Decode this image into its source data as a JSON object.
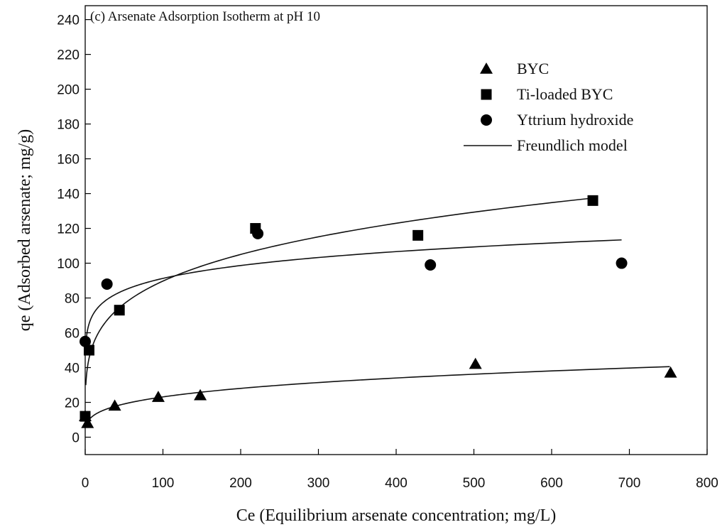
{
  "chart_data": {
    "type": "scatter",
    "title": "(c) Arsenate Adsorption Isotherm at pH 10",
    "xlabel": "Ce (Equilibrium arsenate concentration; mg/L)",
    "ylabel": "qe (Adsorbed arsenate; mg/g)",
    "xlim": [
      0,
      800
    ],
    "ylim": [
      -10,
      248
    ],
    "xticks": [
      "0",
      "100",
      "200",
      "300",
      "400",
      "500",
      "600",
      "700",
      "800"
    ],
    "yticks": [
      "0",
      "20",
      "40",
      "60",
      "80",
      "100",
      "120",
      "140",
      "160",
      "180",
      "200",
      "220",
      "240"
    ],
    "grid": false,
    "legend_position": "top-right",
    "series": [
      {
        "name": "BYC",
        "marker": "triangle",
        "points": [
          [
            0,
            12
          ],
          [
            3,
            8
          ],
          [
            38,
            18
          ],
          [
            94,
            23
          ],
          [
            148,
            24
          ],
          [
            502,
            42
          ],
          [
            753,
            37
          ]
        ],
        "model": {
          "K": 6.44,
          "n": 3.6,
          "xmin": 1,
          "xmax": 752
        }
      },
      {
        "name": "Ti-loaded BYC",
        "marker": "square",
        "points": [
          [
            0,
            12
          ],
          [
            5,
            50
          ],
          [
            44,
            73
          ],
          [
            219,
            120
          ],
          [
            428,
            116
          ],
          [
            653,
            136
          ]
        ],
        "model": {
          "K": 31.5,
          "n": 4.4,
          "xmin": 0.8,
          "xmax": 653
        }
      },
      {
        "name": "Yttrium hydroxide",
        "marker": "circle",
        "points": [
          [
            0,
            55
          ],
          [
            28,
            88
          ],
          [
            222,
            117
          ],
          [
            444,
            99
          ],
          [
            690,
            100
          ]
        ],
        "model": {
          "K": 54.4,
          "n": 8.9,
          "xmin": 0.6,
          "xmax": 690
        }
      }
    ],
    "legend": [
      {
        "label": "BYC",
        "marker": "triangle"
      },
      {
        "label": "Ti-loaded BYC",
        "marker": "square"
      },
      {
        "label": "Yttrium hydroxide",
        "marker": "circle"
      },
      {
        "label": "Freundlich model",
        "marker": "line"
      }
    ]
  }
}
